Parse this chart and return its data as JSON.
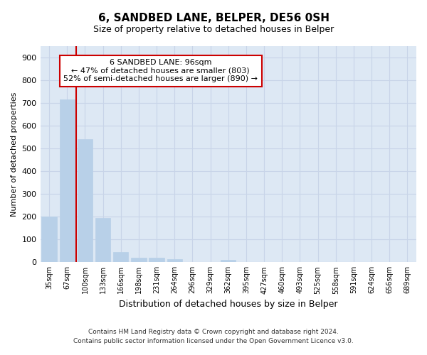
{
  "title1": "6, SANDBED LANE, BELPER, DE56 0SH",
  "title2": "Size of property relative to detached houses in Belper",
  "xlabel": "Distribution of detached houses by size in Belper",
  "ylabel": "Number of detached properties",
  "categories": [
    "35sqm",
    "67sqm",
    "100sqm",
    "133sqm",
    "166sqm",
    "198sqm",
    "231sqm",
    "264sqm",
    "296sqm",
    "329sqm",
    "362sqm",
    "395sqm",
    "427sqm",
    "460sqm",
    "493sqm",
    "525sqm",
    "558sqm",
    "591sqm",
    "624sqm",
    "656sqm",
    "689sqm"
  ],
  "values": [
    200,
    715,
    540,
    195,
    45,
    20,
    20,
    15,
    0,
    0,
    10,
    0,
    0,
    0,
    0,
    0,
    0,
    0,
    0,
    0,
    0
  ],
  "bar_color": "#b8d0e8",
  "bar_edge_color": "#b8d0e8",
  "vline_color": "#cc0000",
  "vline_x": 1.5,
  "annotation_text": "6 SANDBED LANE: 96sqm\n← 47% of detached houses are smaller (803)\n52% of semi-detached houses are larger (890) →",
  "annotation_box_color": "#ffffff",
  "annotation_box_edge_color": "#cc0000",
  "ylim": [
    0,
    950
  ],
  "yticks": [
    0,
    100,
    200,
    300,
    400,
    500,
    600,
    700,
    800,
    900
  ],
  "footer1": "Contains HM Land Registry data © Crown copyright and database right 2024.",
  "footer2": "Contains public sector information licensed under the Open Government Licence v3.0.",
  "grid_color": "#c8d4e8",
  "bg_color": "#dde8f4",
  "title1_fontsize": 11,
  "title2_fontsize": 9,
  "ylabel_fontsize": 8,
  "xlabel_fontsize": 9,
  "xtick_fontsize": 7,
  "ytick_fontsize": 8,
  "footer_fontsize": 6.5,
  "annot_fontsize": 8
}
